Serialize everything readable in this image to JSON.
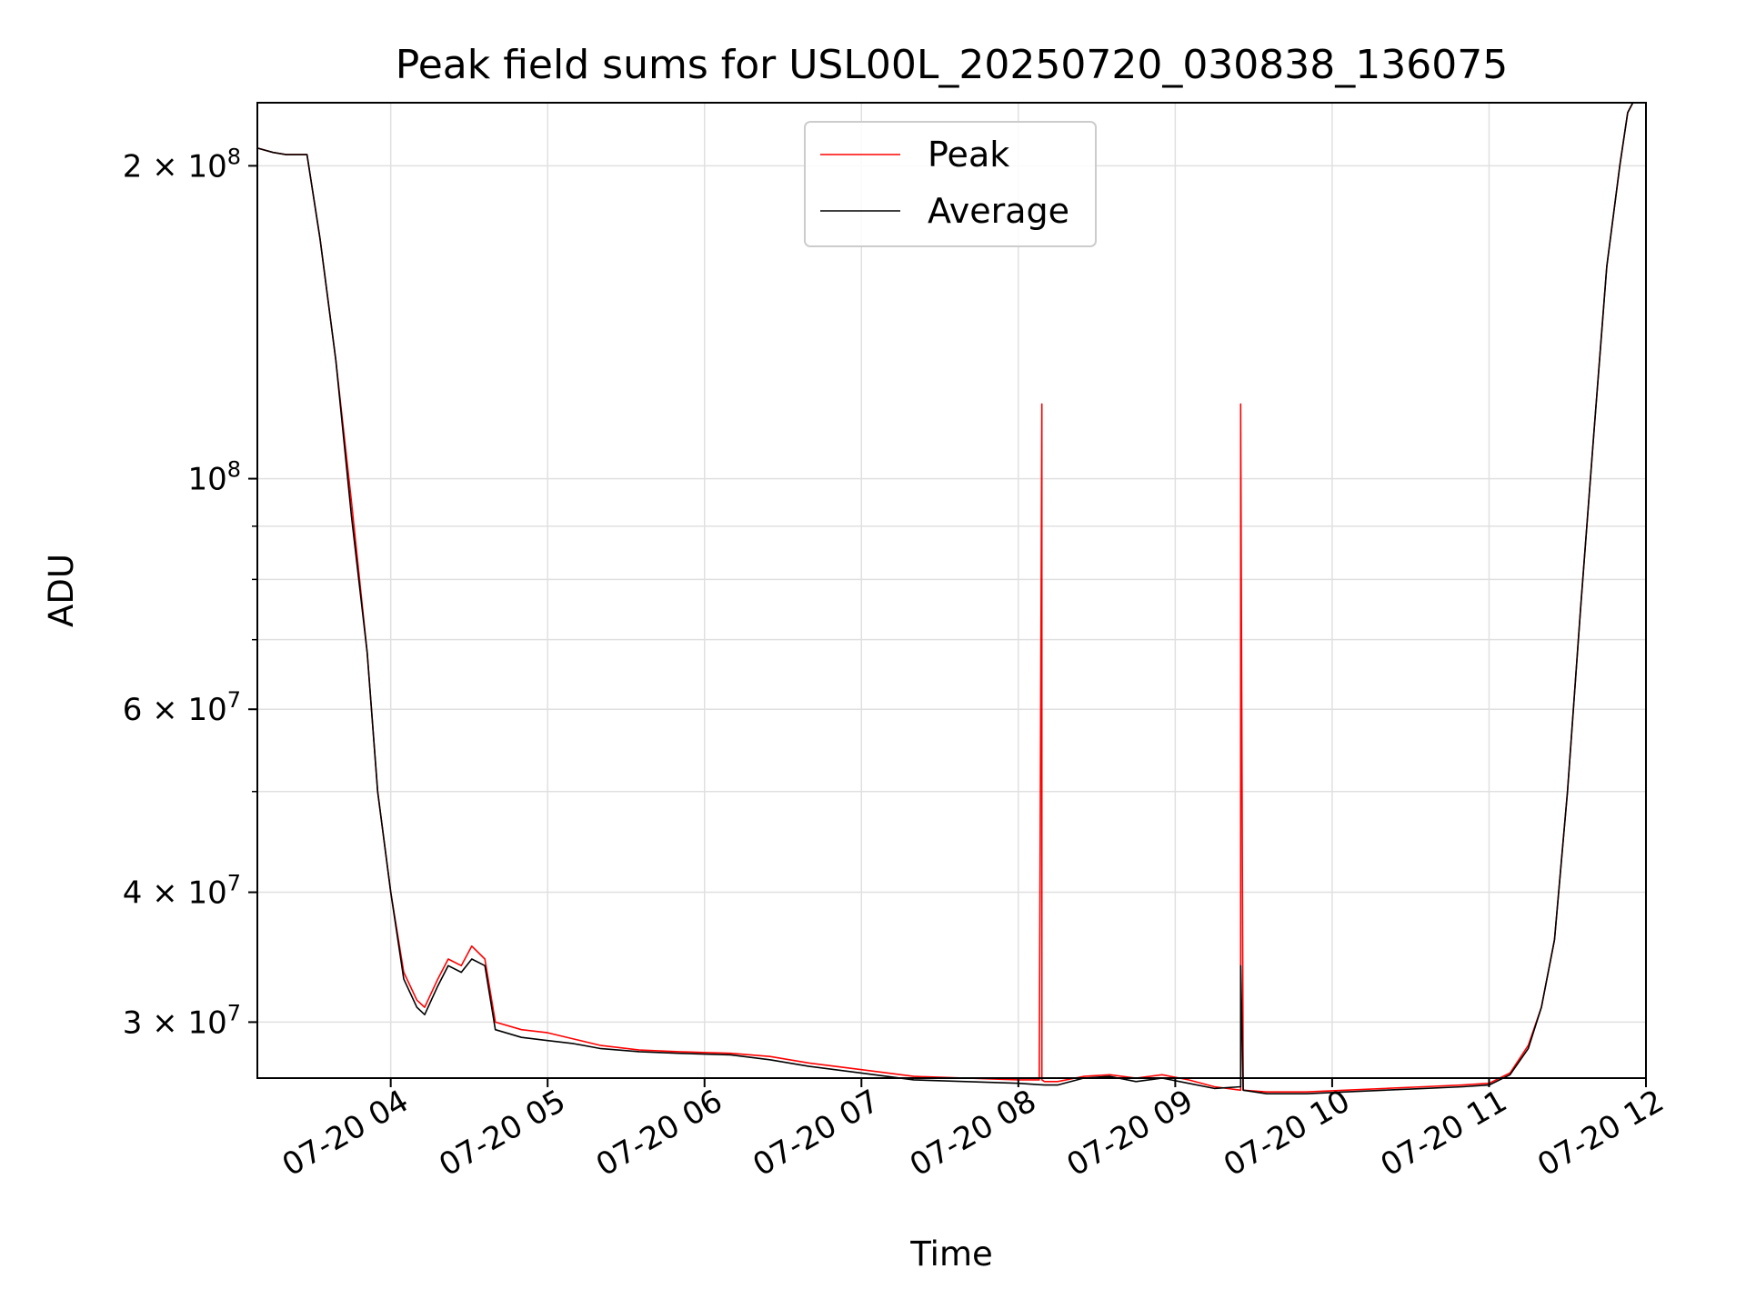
{
  "chart_data": {
    "type": "line",
    "title": "Peak field sums for USL00L_20250720_030838_136075",
    "xlabel": "Time",
    "ylabel": "ADU",
    "yscale": "log",
    "grid": true,
    "legend_position": "top-center",
    "xlim": [
      "2025-07-20 03:09",
      "2025-07-20 12:00"
    ],
    "ylim": [
      26500000,
      230000000
    ],
    "x_ticks": [
      {
        "value": "2025-07-20 04:00",
        "label": "07-20 04"
      },
      {
        "value": "2025-07-20 05:00",
        "label": "07-20 05"
      },
      {
        "value": "2025-07-20 06:00",
        "label": "07-20 06"
      },
      {
        "value": "2025-07-20 07:00",
        "label": "07-20 07"
      },
      {
        "value": "2025-07-20 08:00",
        "label": "07-20 08"
      },
      {
        "value": "2025-07-20 09:00",
        "label": "07-20 09"
      },
      {
        "value": "2025-07-20 10:00",
        "label": "07-20 10"
      },
      {
        "value": "2025-07-20 11:00",
        "label": "07-20 11"
      },
      {
        "value": "2025-07-20 12:00",
        "label": "07-20 12"
      }
    ],
    "y_ticks": [
      {
        "value": 30000000,
        "mant": "3",
        "exp": "7"
      },
      {
        "value": 40000000,
        "mant": "4",
        "exp": "7"
      },
      {
        "value": 60000000,
        "mant": "6",
        "exp": "7"
      },
      {
        "value": 100000000,
        "mant": "",
        "exp": "8"
      },
      {
        "value": 200000000,
        "mant": "2",
        "exp": "8"
      }
    ],
    "y_minor_ticks": [
      50000000,
      70000000,
      80000000,
      90000000
    ],
    "series": [
      {
        "name": "Peak",
        "color": "#ff0000",
        "x": [
          "2025-07-20 03:09",
          "2025-07-20 03:15",
          "2025-07-20 03:20",
          "2025-07-20 03:28",
          "2025-07-20 03:33",
          "2025-07-20 03:39",
          "2025-07-20 03:45",
          "2025-07-20 03:51",
          "2025-07-20 03:55",
          "2025-07-20 04:00",
          "2025-07-20 04:05",
          "2025-07-20 04:10",
          "2025-07-20 04:13",
          "2025-07-20 04:18",
          "2025-07-20 04:22",
          "2025-07-20 04:27",
          "2025-07-20 04:31",
          "2025-07-20 04:36",
          "2025-07-20 04:40",
          "2025-07-20 04:50",
          "2025-07-20 05:00",
          "2025-07-20 05:10",
          "2025-07-20 05:20",
          "2025-07-20 05:35",
          "2025-07-20 05:50",
          "2025-07-20 06:10",
          "2025-07-20 06:25",
          "2025-07-20 06:40",
          "2025-07-20 07:00",
          "2025-07-20 07:20",
          "2025-07-20 07:40",
          "2025-07-20 08:00",
          "2025-07-20 08:08",
          "2025-07-20 08:09",
          "2025-07-20 08:09",
          "2025-07-20 08:10",
          "2025-07-20 08:15",
          "2025-07-20 08:25",
          "2025-07-20 08:35",
          "2025-07-20 08:45",
          "2025-07-20 08:55",
          "2025-07-20 09:05",
          "2025-07-20 09:15",
          "2025-07-20 09:25",
          "2025-07-20 09:25",
          "2025-07-20 09:26",
          "2025-07-20 09:35",
          "2025-07-20 09:50",
          "2025-07-20 10:05",
          "2025-07-20 10:20",
          "2025-07-20 10:35",
          "2025-07-20 10:50",
          "2025-07-20 11:00",
          "2025-07-20 11:08",
          "2025-07-20 11:15",
          "2025-07-20 11:20",
          "2025-07-20 11:25",
          "2025-07-20 11:30",
          "2025-07-20 11:35",
          "2025-07-20 11:40",
          "2025-07-20 11:45",
          "2025-07-20 11:50",
          "2025-07-20 11:53",
          "2025-07-20 11:55"
        ],
        "values": [
          208000000,
          206000000,
          205000000,
          205000000,
          170000000,
          130000000,
          95000000,
          68000000,
          50000000,
          40000000,
          33500000,
          31500000,
          31000000,
          33000000,
          34500000,
          34000000,
          35500000,
          34500000,
          30000000,
          29500000,
          29300000,
          28900000,
          28500000,
          28200000,
          28100000,
          28000000,
          27800000,
          27400000,
          27000000,
          26600000,
          26500000,
          26400000,
          26400000,
          118000000,
          26400000,
          26300000,
          26300000,
          26600000,
          26700000,
          26500000,
          26700000,
          26400000,
          26000000,
          25800000,
          118000000,
          25800000,
          25700000,
          25700000,
          25800000,
          25900000,
          26000000,
          26100000,
          26200000,
          26800000,
          28500000,
          31000000,
          36000000,
          50000000,
          75000000,
          110000000,
          160000000,
          200000000,
          225000000,
          230000000
        ]
      },
      {
        "name": "Average",
        "color": "#000000",
        "x": [
          "2025-07-20 03:09",
          "2025-07-20 03:15",
          "2025-07-20 03:20",
          "2025-07-20 03:28",
          "2025-07-20 03:33",
          "2025-07-20 03:39",
          "2025-07-20 03:45",
          "2025-07-20 03:51",
          "2025-07-20 03:55",
          "2025-07-20 04:00",
          "2025-07-20 04:05",
          "2025-07-20 04:10",
          "2025-07-20 04:13",
          "2025-07-20 04:18",
          "2025-07-20 04:22",
          "2025-07-20 04:27",
          "2025-07-20 04:31",
          "2025-07-20 04:36",
          "2025-07-20 04:40",
          "2025-07-20 04:50",
          "2025-07-20 05:00",
          "2025-07-20 05:10",
          "2025-07-20 05:20",
          "2025-07-20 05:35",
          "2025-07-20 05:50",
          "2025-07-20 06:10",
          "2025-07-20 06:25",
          "2025-07-20 06:40",
          "2025-07-20 07:00",
          "2025-07-20 07:20",
          "2025-07-20 07:40",
          "2025-07-20 08:00",
          "2025-07-20 08:10",
          "2025-07-20 08:15",
          "2025-07-20 08:25",
          "2025-07-20 08:35",
          "2025-07-20 08:45",
          "2025-07-20 08:55",
          "2025-07-20 09:05",
          "2025-07-20 09:15",
          "2025-07-20 09:25",
          "2025-07-20 09:25",
          "2025-07-20 09:26",
          "2025-07-20 09:35",
          "2025-07-20 09:50",
          "2025-07-20 10:05",
          "2025-07-20 10:20",
          "2025-07-20 10:35",
          "2025-07-20 10:50",
          "2025-07-20 11:00",
          "2025-07-20 11:08",
          "2025-07-20 11:15",
          "2025-07-20 11:20",
          "2025-07-20 11:25",
          "2025-07-20 11:30",
          "2025-07-20 11:35",
          "2025-07-20 11:40",
          "2025-07-20 11:45",
          "2025-07-20 11:50",
          "2025-07-20 11:53",
          "2025-07-20 11:55"
        ],
        "values": [
          208000000,
          206000000,
          205000000,
          205000000,
          170000000,
          130000000,
          92000000,
          68000000,
          50000000,
          40000000,
          33000000,
          31000000,
          30500000,
          32500000,
          34000000,
          33500000,
          34500000,
          34000000,
          29500000,
          29000000,
          28800000,
          28600000,
          28300000,
          28100000,
          28000000,
          27900000,
          27600000,
          27200000,
          26800000,
          26400000,
          26300000,
          26200000,
          26100000,
          26100000,
          26500000,
          26600000,
          26300000,
          26500000,
          26200000,
          25900000,
          26000000,
          34000000,
          25800000,
          25600000,
          25600000,
          25700000,
          25800000,
          25900000,
          26000000,
          26100000,
          26700000,
          28300000,
          31000000,
          36000000,
          50000000,
          75000000,
          110000000,
          160000000,
          200000000,
          225000000,
          230000000
        ]
      }
    ]
  }
}
